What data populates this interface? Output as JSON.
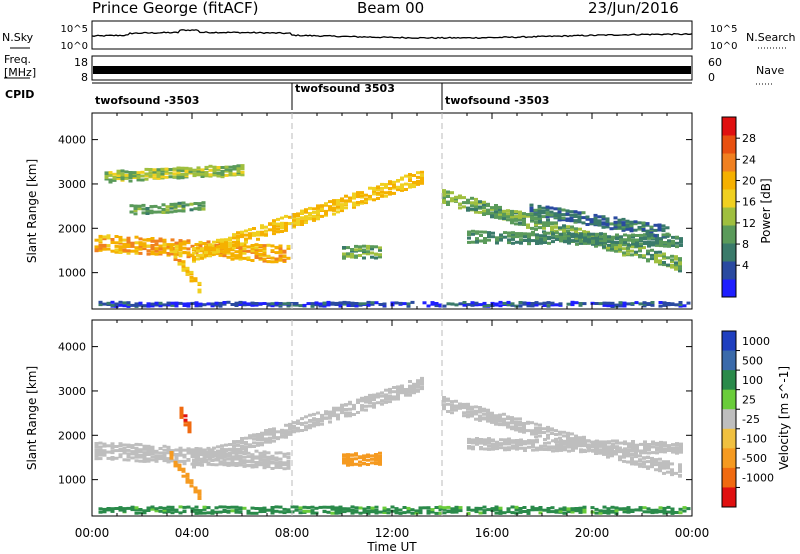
{
  "header": {
    "station": "Prince George (fitACF)",
    "beam": "Beam 00",
    "date": "23/Jun/2016"
  },
  "noise_panel": {
    "left_label": "N.Sky",
    "left_ticks": [
      "10^5",
      "10^0"
    ],
    "right_label": "N.Search",
    "right_ticks": [
      "10^5",
      "10^0"
    ]
  },
  "freq_panel": {
    "left_label_line1": "Freq.",
    "left_label_line2": "[MHz]",
    "left_ticks": [
      "18",
      "8"
    ],
    "right_label": "Nave",
    "right_ticks": [
      "60",
      "0"
    ]
  },
  "cpid_panel": {
    "label": "CPID",
    "segments": [
      {
        "name": "twofsound -3503",
        "start_h": 0,
        "end_h": 8
      },
      {
        "name": "twofsound 3503",
        "start_h": 8,
        "end_h": 14
      },
      {
        "name": "twofsound -3503",
        "start_h": 14,
        "end_h": 24
      }
    ]
  },
  "chart_data": [
    {
      "type": "heatmap",
      "name": "power",
      "ylabel": "Slant Range [km]",
      "yticks": [
        1000,
        2000,
        3000,
        4000
      ],
      "ylim": [
        180,
        4600
      ],
      "xlim": [
        0,
        24
      ],
      "colorbar_label": "Power [dB]",
      "colorbar_ticks": [
        4,
        8,
        12,
        16,
        20,
        24,
        28
      ],
      "colorbar_colors": [
        "#1f1fff",
        "#2a4aa0",
        "#3a7a6a",
        "#5a9a5a",
        "#9fbf3f",
        "#f0d020",
        "#f5b000",
        "#f08020",
        "#e85010",
        "#e01010"
      ],
      "bands": [
        {
          "t_start": 0.1,
          "t_end": 7.8,
          "r0": 1650,
          "r1": 1400,
          "width": 380,
          "value": 22
        },
        {
          "t_start": 4.0,
          "t_end": 13.2,
          "r0": 1400,
          "r1": 3150,
          "width": 320,
          "value": 20
        },
        {
          "t_start": 0.5,
          "t_end": 6.0,
          "r0": 3150,
          "r1": 3300,
          "width": 250,
          "value": 15
        },
        {
          "t_start": 1.5,
          "t_end": 4.5,
          "r0": 2400,
          "r1": 2500,
          "width": 200,
          "value": 13
        },
        {
          "t_start": 14.0,
          "t_end": 23.6,
          "r0": 2700,
          "r1": 1150,
          "width": 300,
          "value": 13
        },
        {
          "t_start": 15.0,
          "t_end": 23.5,
          "r0": 1800,
          "r1": 1700,
          "width": 260,
          "value": 11
        },
        {
          "t_start": 17.5,
          "t_end": 23.0,
          "r0": 2400,
          "r1": 1900,
          "width": 260,
          "value": 9
        },
        {
          "t_start": 0.1,
          "t_end": 23.9,
          "r0": 260,
          "r1": 260,
          "width": 120,
          "value": 6
        },
        {
          "t_start": 3.1,
          "t_end": 4.3,
          "r0": 1500,
          "r1": 600,
          "width": 220,
          "value": 21
        },
        {
          "t_start": 10.0,
          "t_end": 11.6,
          "r0": 1450,
          "r1": 1450,
          "width": 280,
          "value": 13
        }
      ]
    },
    {
      "type": "heatmap",
      "name": "velocity",
      "ylabel": "Slant Range [km]",
      "yticks": [
        1000,
        2000,
        3000,
        4000
      ],
      "ylim": [
        180,
        4600
      ],
      "xlim": [
        0,
        24
      ],
      "xticks": [
        "00:00",
        "04:00",
        "08:00",
        "12:00",
        "16:00",
        "20:00",
        "00:00"
      ],
      "xlabel": "Time UT",
      "colorbar_label": "Velocity [m s^-1]",
      "colorbar_ticks": [
        "1000",
        "500",
        "100",
        "25",
        "-25",
        "-100",
        "-500",
        "-1000"
      ],
      "colorbar_colors": [
        "#1f3fbf",
        "#3a6aaa",
        "#2a8a4a",
        "#6acc3a",
        "#bebebe",
        "#f0c040",
        "#f59a20",
        "#f06a10",
        "#e01010"
      ],
      "bands": [
        {
          "t_start": 0.1,
          "t_end": 7.8,
          "r0": 1650,
          "r1": 1400,
          "width": 380,
          "value": 0
        },
        {
          "t_start": 4.0,
          "t_end": 13.2,
          "r0": 1400,
          "r1": 3150,
          "width": 320,
          "value": 0
        },
        {
          "t_start": 14.0,
          "t_end": 23.6,
          "r0": 2700,
          "r1": 1150,
          "width": 300,
          "value": 0
        },
        {
          "t_start": 15.0,
          "t_end": 23.5,
          "r0": 1800,
          "r1": 1700,
          "width": 260,
          "value": 0
        },
        {
          "t_start": 0.1,
          "t_end": 23.9,
          "r0": 300,
          "r1": 300,
          "width": 150,
          "value": 120
        },
        {
          "t_start": 3.1,
          "t_end": 4.3,
          "r0": 1500,
          "r1": 600,
          "width": 220,
          "value": -400
        },
        {
          "t_start": 3.5,
          "t_end": 3.9,
          "r0": 2500,
          "r1": 2100,
          "width": 260,
          "value": -900
        },
        {
          "t_start": 10.0,
          "t_end": 11.6,
          "r0": 1450,
          "r1": 1450,
          "width": 280,
          "value": -150
        }
      ]
    }
  ]
}
